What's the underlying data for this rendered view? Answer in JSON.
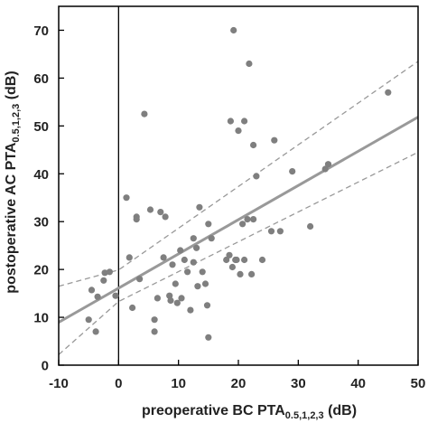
{
  "chart_data": {
    "type": "scatter",
    "xlabel": {
      "main": "preoperative BC PTA",
      "sub": "0.5,1,2,3",
      "unit": " (dB)"
    },
    "ylabel": {
      "main": "postoperative AC PTA",
      "sub": "0.5,1,2,3",
      "unit": " (dB)"
    },
    "xlim": [
      -10,
      50
    ],
    "ylim": [
      0,
      75
    ],
    "xticks": [
      -10,
      0,
      10,
      20,
      30,
      40,
      50
    ],
    "yticks": [
      0,
      10,
      20,
      30,
      40,
      50,
      60,
      70
    ],
    "xtick_labels": [
      "-10",
      "0",
      "10",
      "20",
      "30",
      "40",
      "50"
    ],
    "ytick_labels": [
      "0",
      "10",
      "20",
      "30",
      "40",
      "50",
      "60",
      "70"
    ],
    "grid": false,
    "reference_lines": {
      "x": 0
    },
    "regression_line": {
      "intercept": 16.1,
      "slope": 0.715
    },
    "confidence_band": {
      "upper": [
        [
          -10,
          16.5
        ],
        [
          0,
          19.9
        ],
        [
          50,
          63.5
        ]
      ],
      "lower": [
        [
          -10,
          2.2
        ],
        [
          0,
          13.3
        ],
        [
          50,
          44.5
        ]
      ]
    },
    "colors": {
      "points": "#7f7f7f",
      "regression": "#999999",
      "band": "#999999",
      "axes": "#000000"
    },
    "points": [
      [
        -5,
        9.5
      ],
      [
        -4.5,
        15.7
      ],
      [
        -3.8,
        7
      ],
      [
        -3.5,
        14.3
      ],
      [
        -2.5,
        17.7
      ],
      [
        -2.3,
        19.3
      ],
      [
        -1.5,
        19.5
      ],
      [
        -0.5,
        14.5
      ],
      [
        1.3,
        35
      ],
      [
        1.8,
        22.5
      ],
      [
        2.3,
        12
      ],
      [
        3,
        31
      ],
      [
        3,
        30.5
      ],
      [
        3.5,
        18
      ],
      [
        4.3,
        52.5
      ],
      [
        5.3,
        32.5
      ],
      [
        6,
        9.5
      ],
      [
        6,
        7
      ],
      [
        6.5,
        14
      ],
      [
        7,
        32
      ],
      [
        7.5,
        22.5
      ],
      [
        7.8,
        31
      ],
      [
        8.5,
        14.5
      ],
      [
        8.7,
        13.5
      ],
      [
        9,
        21
      ],
      [
        9.5,
        17
      ],
      [
        9.8,
        13
      ],
      [
        10.3,
        24
      ],
      [
        10.5,
        14
      ],
      [
        11,
        22
      ],
      [
        11.5,
        19.5
      ],
      [
        12,
        11.5
      ],
      [
        12.5,
        26.5
      ],
      [
        12.5,
        21.5
      ],
      [
        13,
        24.5
      ],
      [
        13.2,
        16.5
      ],
      [
        13.5,
        33
      ],
      [
        14,
        19.5
      ],
      [
        14.5,
        17
      ],
      [
        14.8,
        12.5
      ],
      [
        15,
        5.8
      ],
      [
        15,
        29.5
      ],
      [
        15.5,
        26.5
      ],
      [
        18,
        22
      ],
      [
        18.5,
        23
      ],
      [
        18.7,
        51
      ],
      [
        19,
        20.5
      ],
      [
        19.2,
        70
      ],
      [
        19.5,
        22
      ],
      [
        19.7,
        22
      ],
      [
        20,
        49
      ],
      [
        20.3,
        19
      ],
      [
        20.7,
        29.5
      ],
      [
        21,
        22
      ],
      [
        21,
        51
      ],
      [
        21.5,
        30.5
      ],
      [
        21.8,
        63
      ],
      [
        22.2,
        19
      ],
      [
        22.5,
        46
      ],
      [
        22.5,
        30.5
      ],
      [
        23,
        39.5
      ],
      [
        24,
        22
      ],
      [
        25.5,
        28
      ],
      [
        26,
        47
      ],
      [
        27,
        28
      ],
      [
        29,
        40.5
      ],
      [
        32,
        29
      ],
      [
        34.5,
        41
      ],
      [
        35,
        42
      ],
      [
        45,
        57
      ]
    ]
  }
}
